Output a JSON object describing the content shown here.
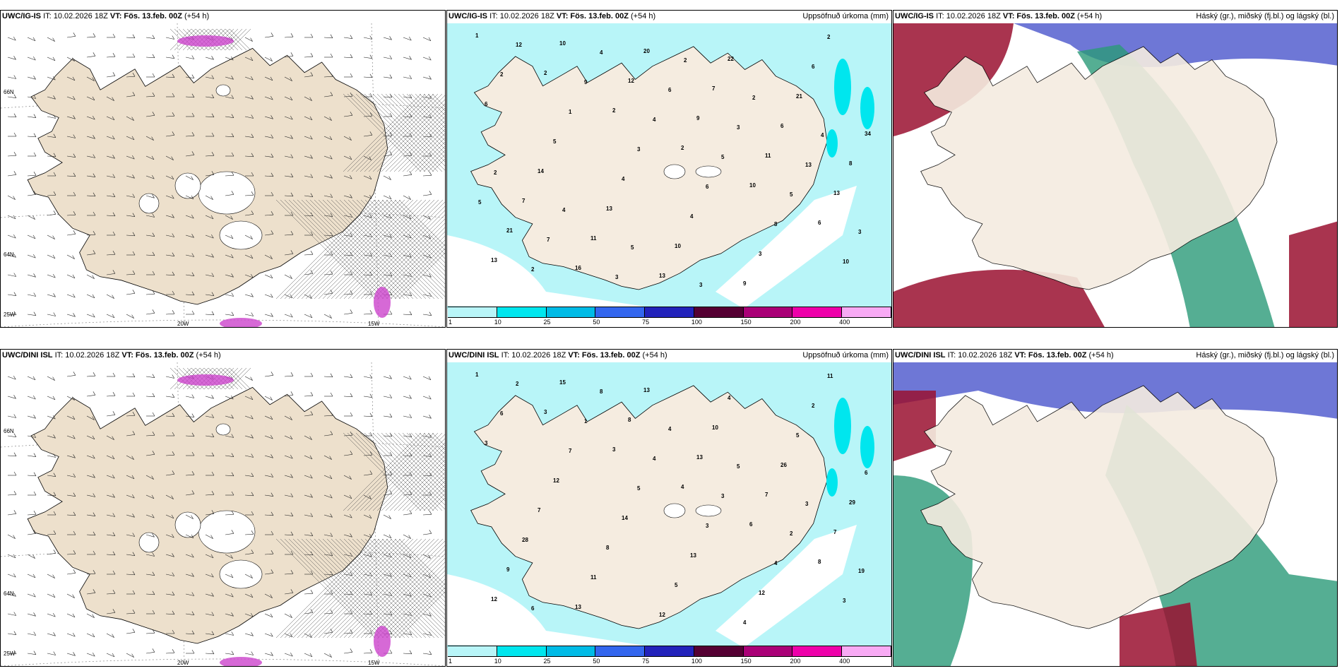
{
  "panels": [
    {
      "model": "UWC/IG-IS",
      "it": "IT: 10.02.2026 18Z",
      "vt": "VT: Fös. 13.feb. 00Z",
      "lead": "(+54 h)",
      "right": ""
    },
    {
      "model": "UWC/IG-IS",
      "it": "IT: 10.02.2026 18Z",
      "vt": "VT: Fös. 13.feb. 00Z",
      "lead": "(+54 h)",
      "right": "Uppsöfnuð úrkoma (mm)"
    },
    {
      "model": "UWC/IG-IS",
      "it": "IT: 10.02.2026 18Z",
      "vt": "VT: Fös. 13.feb. 00Z",
      "lead": "(+54 h)",
      "right": "Háský (gr.), miðský (fj.bl.) og lágský (bl.)"
    },
    {
      "model": "UWC/DINI ISL",
      "it": "IT: 10.02.2026 18Z",
      "vt": "VT: Fös. 13.feb. 00Z",
      "lead": "(+54 h)",
      "right": ""
    },
    {
      "model": "UWC/DINI ISL",
      "it": "IT: 10.02.2026 18Z",
      "vt": "VT: Fös. 13.feb. 00Z",
      "lead": "(+54 h)",
      "right": "Uppsöfnuð úrkoma (mm)"
    },
    {
      "model": "UWC/DINI ISL",
      "it": "IT: 10.02.2026 18Z",
      "vt": "VT: Fös. 13.feb. 00Z",
      "lead": "(+54 h)",
      "right": "Háský (gr.), miðský (fj.bl.) og lágský (bl.)"
    }
  ],
  "axis_labels": {
    "lat66": "66N",
    "lat64": "64N",
    "lon25": "25W",
    "lon20": "20W",
    "lon15": "15W"
  },
  "colorbar": {
    "ticks": [
      "1",
      "10",
      "25",
      "50",
      "75",
      "100",
      "150",
      "200",
      "400"
    ],
    "colors": [
      "#b8f5f8",
      "#00e6ee",
      "#00bbe6",
      "#3366ee",
      "#2222bb",
      "#550033",
      "#aa0077",
      "#ee00aa",
      "#f8aaf4"
    ]
  },
  "precip_top_numbers": [
    "1",
    "2",
    "2",
    "2",
    "10",
    "6",
    "13",
    "10",
    "12",
    "9",
    "11",
    "13",
    "21",
    "16",
    "20",
    "7",
    "6",
    "8",
    "7",
    "11",
    "13",
    "22",
    "21",
    "34",
    "14",
    "13",
    "10",
    "9",
    "6",
    "6",
    "5",
    "4",
    "4",
    "3",
    "2",
    "2",
    "1",
    "3",
    "6",
    "8",
    "10",
    "12",
    "9",
    "4",
    "5",
    "5",
    "3",
    "2",
    "4",
    "6",
    "3",
    "13",
    "5",
    "7",
    "3",
    "2",
    "2",
    "4",
    "2",
    "4",
    "5",
    "3"
  ],
  "precip_bot_numbers": [
    "1",
    "3",
    "3",
    "4",
    "6",
    "8",
    "12",
    "15",
    "8",
    "13",
    "7",
    "7",
    "9",
    "13",
    "13",
    "10",
    "26",
    "29",
    "28",
    "11",
    "12",
    "4",
    "5",
    "6",
    "7",
    "8",
    "5",
    "4",
    "2",
    "3",
    "12",
    "14",
    "13",
    "12",
    "11",
    "6",
    "7",
    "5",
    "3",
    "4",
    "3",
    "2",
    "1",
    "4",
    "3",
    "2",
    "19",
    "6",
    "8",
    "4",
    "5",
    "3"
  ],
  "colors": {
    "land": "#f5ece0",
    "land_windpanel": "#ede0cc",
    "sea": "#ffffff",
    "precip_light": "#b8f5f8",
    "cloud_high": "#2a9a78",
    "cloud_mid": "#4a55cc",
    "cloud_low": "#9a1030"
  }
}
